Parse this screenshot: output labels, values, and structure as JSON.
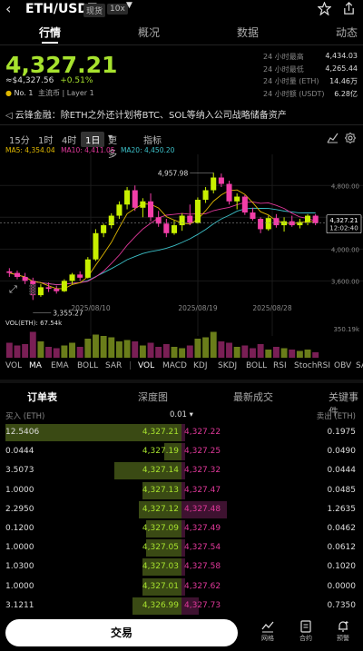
{
  "header": {
    "pair": "ETH/USDT",
    "tag_spot": "现货",
    "tag_leverage": "10x"
  },
  "tabs": [
    {
      "label": "行情",
      "active": true
    },
    {
      "label": "概况",
      "active": false
    },
    {
      "label": "数据",
      "active": false
    },
    {
      "label": "动态",
      "active": false
    }
  ],
  "price": {
    "last": "4,327.21",
    "fiat": "≈$4,327.56",
    "change": "+0.51%",
    "rank": "No. 1",
    "rank_tags": "主流币 | Layer 1"
  },
  "stats": [
    {
      "label": "24 小时最高",
      "value": "4,434.03"
    },
    {
      "label": "24 小时最低",
      "value": "4,265.44"
    },
    {
      "label": "24 小时量 (ETH)",
      "value": "14.46万"
    },
    {
      "label": "24 小时额 (USDT)",
      "value": "6.28亿"
    }
  ],
  "news": "云锋金融：除ETH之外还计划将BTC、SOL等纳入公司战略储备资产",
  "timeframes": {
    "items": [
      "15分",
      "1时",
      "4时",
      "1日",
      "更多",
      "指标"
    ],
    "selected": "1日"
  },
  "ma": {
    "ma5": "MA5: 4,354.04",
    "ma10": "MA10: 4,411.05",
    "ma20": "MA20: 4,450.20",
    "colors": {
      "ma5": "#e0b800",
      "ma10": "#e0389a",
      "ma20": "#3cc0c8"
    }
  },
  "chart_data": {
    "type": "candlestick",
    "y_ticks": [
      "4,800.00",
      "4,400.00",
      "4,000.00",
      "3,600.00"
    ],
    "x_labels": [
      "2025/08/10",
      "2025/08/19",
      "2025/08/28"
    ],
    "high_label": "4,957.98",
    "low_label": "3,355.27",
    "last_price_label": "4,327.21",
    "countdown": "12:02:40",
    "vol_label": "VOL(ETH): 67.54k",
    "vol_max_label": "350.19k",
    "up_color": "#c8f000",
    "down_color": "#f23ea8",
    "candles": [
      [
        3720,
        3760,
        3650,
        3700
      ],
      [
        3700,
        3730,
        3620,
        3650
      ],
      [
        3650,
        3700,
        3560,
        3600
      ],
      [
        3600,
        3640,
        3360,
        3420
      ],
      [
        3420,
        3560,
        3400,
        3520
      ],
      [
        3520,
        3580,
        3460,
        3500
      ],
      [
        3500,
        3540,
        3440,
        3470
      ],
      [
        3470,
        3620,
        3460,
        3600
      ],
      [
        3600,
        3700,
        3560,
        3680
      ],
      [
        3680,
        3720,
        3600,
        3640
      ],
      [
        3640,
        3900,
        3630,
        3870
      ],
      [
        3870,
        4250,
        3850,
        4200
      ],
      [
        4200,
        4320,
        4150,
        4300
      ],
      [
        4300,
        4450,
        4260,
        4420
      ],
      [
        4420,
        4600,
        4380,
        4560
      ],
      [
        4560,
        4780,
        4500,
        4740
      ],
      [
        4740,
        4800,
        4480,
        4520
      ],
      [
        4520,
        4640,
        4400,
        4600
      ],
      [
        4600,
        4700,
        4350,
        4400
      ],
      [
        4400,
        4480,
        4280,
        4320
      ],
      [
        4320,
        4380,
        4150,
        4200
      ],
      [
        4200,
        4360,
        4180,
        4300
      ],
      [
        4300,
        4450,
        4230,
        4420
      ],
      [
        4420,
        4560,
        4300,
        4330
      ],
      [
        4330,
        4650,
        4320,
        4620
      ],
      [
        4620,
        4780,
        4580,
        4740
      ],
      [
        4740,
        4960,
        4700,
        4900
      ],
      [
        4900,
        4950,
        4780,
        4820
      ],
      [
        4820,
        4860,
        4560,
        4600
      ],
      [
        4600,
        4700,
        4500,
        4660
      ],
      [
        4660,
        4680,
        4430,
        4460
      ],
      [
        4460,
        4520,
        4360,
        4380
      ],
      [
        4380,
        4400,
        4200,
        4250
      ],
      [
        4250,
        4420,
        4230,
        4390
      ],
      [
        4390,
        4440,
        4270,
        4300
      ],
      [
        4300,
        4400,
        4220,
        4350
      ],
      [
        4350,
        4420,
        4280,
        4300
      ],
      [
        4300,
        4380,
        4260,
        4340
      ],
      [
        4340,
        4440,
        4300,
        4420
      ],
      [
        4420,
        4440,
        4300,
        4327
      ]
    ],
    "volumes": [
      0.55,
      0.45,
      0.5,
      0.95,
      0.6,
      0.4,
      0.35,
      0.45,
      0.55,
      0.4,
      0.7,
      0.85,
      0.8,
      0.75,
      0.6,
      0.65,
      0.6,
      0.45,
      0.55,
      0.4,
      0.5,
      0.4,
      0.35,
      0.45,
      0.7,
      0.75,
      0.95,
      0.6,
      0.55,
      0.4,
      0.45,
      0.35,
      0.5,
      0.3,
      0.4,
      0.35,
      0.3,
      0.25,
      0.3,
      0.2
    ]
  },
  "indicators": [
    "VOL",
    "MA",
    "EMA",
    "BOLL",
    "SAR",
    "VOL",
    "MACD",
    "KDJ",
    "SKDJ",
    "BOLL",
    "RSI",
    "StochRSI",
    "OBV",
    "SA"
  ],
  "book_tabs": [
    "订单表",
    "深度图",
    "最新成交",
    "关键事件"
  ],
  "orderbook": {
    "bid_header": "买入 (ETH)",
    "ask_header": "卖出 (ETH)",
    "precision": "0.01",
    "rows": [
      {
        "bq": "12.5406",
        "bp": "4,327.21",
        "ap": "4,327.22",
        "aq": "0.1975",
        "bw": 1.0,
        "aw": 0.02
      },
      {
        "bq": "0.0444",
        "bp": "4,327.19",
        "ap": "4,327.25",
        "aq": "0.0490",
        "bw": 0.1,
        "aw": 0.02
      },
      {
        "bq": "3.5073",
        "bp": "4,327.14",
        "ap": "4,327.32",
        "aq": "0.0444",
        "bw": 0.38,
        "aw": 0.02
      },
      {
        "bq": "1.0000",
        "bp": "4,327.13",
        "ap": "4,327.47",
        "aq": "0.0485",
        "bw": 0.22,
        "aw": 0.02
      },
      {
        "bq": "2.2950",
        "bp": "4,327.12",
        "ap": "4,327.48",
        "aq": "1.2635",
        "bw": 0.24,
        "aw": 0.26
      },
      {
        "bq": "0.1200",
        "bp": "4,327.09",
        "ap": "4,327.49",
        "aq": "0.0462",
        "bw": 0.2,
        "aw": 0.02
      },
      {
        "bq": "1.0000",
        "bp": "4,327.05",
        "ap": "4,327.54",
        "aq": "0.0612",
        "bw": 0.2,
        "aw": 0.02
      },
      {
        "bq": "1.0300",
        "bp": "4,327.03",
        "ap": "4,327.58",
        "aq": "0.1020",
        "bw": 0.22,
        "aw": 0.02
      },
      {
        "bq": "1.0000",
        "bp": "4,327.01",
        "ap": "4,327.62",
        "aq": "0.0000",
        "bw": 0.22,
        "aw": 0.02
      },
      {
        "bq": "3.1211",
        "bp": "4,326.99",
        "ap": "4,327.73",
        "aq": "0.7350",
        "bw": 0.28,
        "aw": 0.1
      }
    ]
  },
  "bottom": {
    "trade": "交易",
    "nav": [
      {
        "label": "网格",
        "icon": "grid-chart-icon"
      },
      {
        "label": "合约",
        "icon": "contract-icon"
      },
      {
        "label": "预警",
        "icon": "alert-bell-icon"
      }
    ]
  }
}
